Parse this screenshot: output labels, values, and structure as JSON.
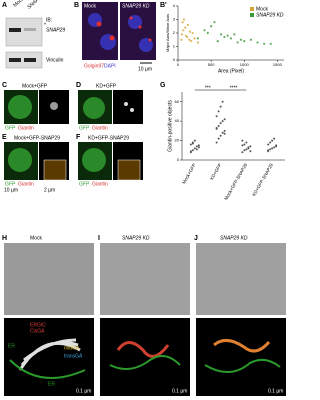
{
  "panels": {
    "A": {
      "label": "A",
      "mock": "Mock",
      "kd": "SNAP29 KD",
      "ib": "IB:",
      "star": "*",
      "snap29": "SNAP29",
      "vinculin": "Vinculin"
    },
    "B": {
      "label": "B",
      "mock": "Mock",
      "kd": "SNAP29 KD",
      "stain1": "Golgin97",
      "stain2": "DAPI",
      "scale": "10 µm"
    },
    "Bp": {
      "label": "B'"
    },
    "C": {
      "label": "C",
      "title": "Mock+GFP",
      "stain1": "GFP",
      "stain2": "Giantin"
    },
    "D": {
      "label": "D",
      "title": "KD+GFP",
      "stain1": "GFP",
      "stain2": "Giantin"
    },
    "E": {
      "label": "E",
      "title": "Mock+GFP-SNAP29",
      "stain1": "GFP",
      "stain2": "Giantin",
      "scale1": "10 µm",
      "scale2": "2 µm"
    },
    "F": {
      "label": "F",
      "title": "KD+GFP-SNAP29",
      "stain1": "GFP",
      "stain2": "Giantin"
    },
    "G": {
      "label": "G"
    },
    "H": {
      "label": "H",
      "title": "Mock",
      "ergic": "ERGIC",
      "cisga": "CisGA",
      "midga": "midGA",
      "transga": "transGA",
      "er1": "ER",
      "er2": "ER",
      "scale": "0.1 µm"
    },
    "I": {
      "label": "I",
      "title": "SNAP29 KD",
      "scale": "0.1 µm"
    },
    "J": {
      "label": "J",
      "title": "SNAP29 KD",
      "scale": "0.1 µm"
    }
  },
  "chart_data": [
    {
      "type": "scatter",
      "xlabel": "Area (Pixel)",
      "ylabel": "Major Axis/Minor Axis",
      "xlim": [
        0,
        1600
      ],
      "ylim": [
        0,
        4
      ],
      "xticks": [
        0,
        500,
        1000,
        1500
      ],
      "yticks": [
        0,
        1,
        2,
        3,
        4
      ],
      "legend": "upper right",
      "series": [
        {
          "name": "Mock",
          "color": "#d4a73a",
          "x": [
            50,
            80,
            120,
            150,
            200,
            90,
            60,
            180,
            250,
            110,
            300,
            140,
            70,
            220,
            170
          ],
          "values": [
            1.5,
            2.2,
            1.8,
            2.6,
            1.4,
            3.0,
            1.9,
            2.1,
            1.6,
            2.4,
            1.3,
            1.7,
            2.8,
            2.0,
            1.5
          ]
        },
        {
          "name": "SNAP29 KD",
          "color": "#3a9a3a",
          "x": [
            300,
            450,
            600,
            750,
            900,
            1100,
            1300,
            500,
            650,
            800,
            1000,
            1200,
            400,
            700,
            950,
            1400,
            550,
            850
          ],
          "values": [
            1.6,
            2.0,
            1.4,
            1.8,
            1.3,
            1.5,
            1.2,
            2.5,
            1.9,
            1.6,
            1.4,
            1.3,
            2.2,
            1.7,
            1.5,
            1.2,
            2.8,
            1.9
          ]
        }
      ]
    },
    {
      "type": "strip",
      "ylabel": "Giantin-positive objects",
      "ylim": [
        0,
        70
      ],
      "yticks": [
        0,
        20,
        40,
        60
      ],
      "categories": [
        "Mock+GFP",
        "KD+GFP",
        "Mock+GFP-SNAP29",
        "KD+GFP-SNAP29"
      ],
      "values": [
        [
          8,
          10,
          12,
          14,
          15,
          16,
          18,
          20,
          11,
          13,
          9,
          17
        ],
        [
          18,
          22,
          25,
          28,
          30,
          32,
          35,
          38,
          40,
          42,
          45,
          50,
          55,
          60,
          27,
          33
        ],
        [
          8,
          10,
          11,
          12,
          14,
          15,
          16,
          18,
          13,
          9,
          20
        ],
        [
          9,
          11,
          12,
          13,
          15,
          16,
          18,
          20,
          22,
          14,
          10
        ]
      ],
      "annotations": [
        "***",
        "****"
      ]
    }
  ]
}
